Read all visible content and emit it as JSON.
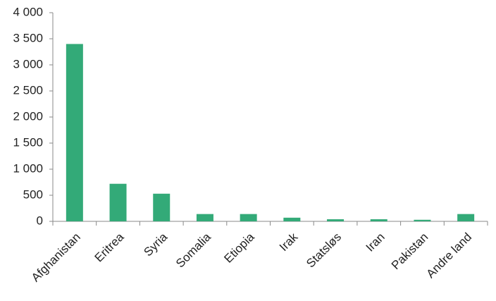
{
  "chart_data": {
    "type": "bar",
    "categories": [
      "Afghanistan",
      "Eritrea",
      "Syria",
      "Somalia",
      "Etiopia",
      "Irak",
      "Statsløs",
      "Iran",
      "Pakistan",
      "Andre land"
    ],
    "values": [
      3400,
      720,
      530,
      140,
      140,
      70,
      40,
      40,
      30,
      140
    ],
    "color": "#33aa78",
    "ylim": [
      0,
      4000
    ],
    "yticks": [
      0,
      500,
      {
        "value": 1000,
        "label": "1 000"
      },
      {
        "value": 1500,
        "label": "1 500"
      },
      {
        "value": 2000,
        "label": "2 000"
      },
      {
        "value": 2500,
        "label": "2 500"
      },
      {
        "value": 3000,
        "label": "3 000"
      },
      {
        "value": 3500,
        "label": "3 500"
      },
      {
        "value": 4000,
        "label": "4 000"
      }
    ],
    "grid": false
  }
}
